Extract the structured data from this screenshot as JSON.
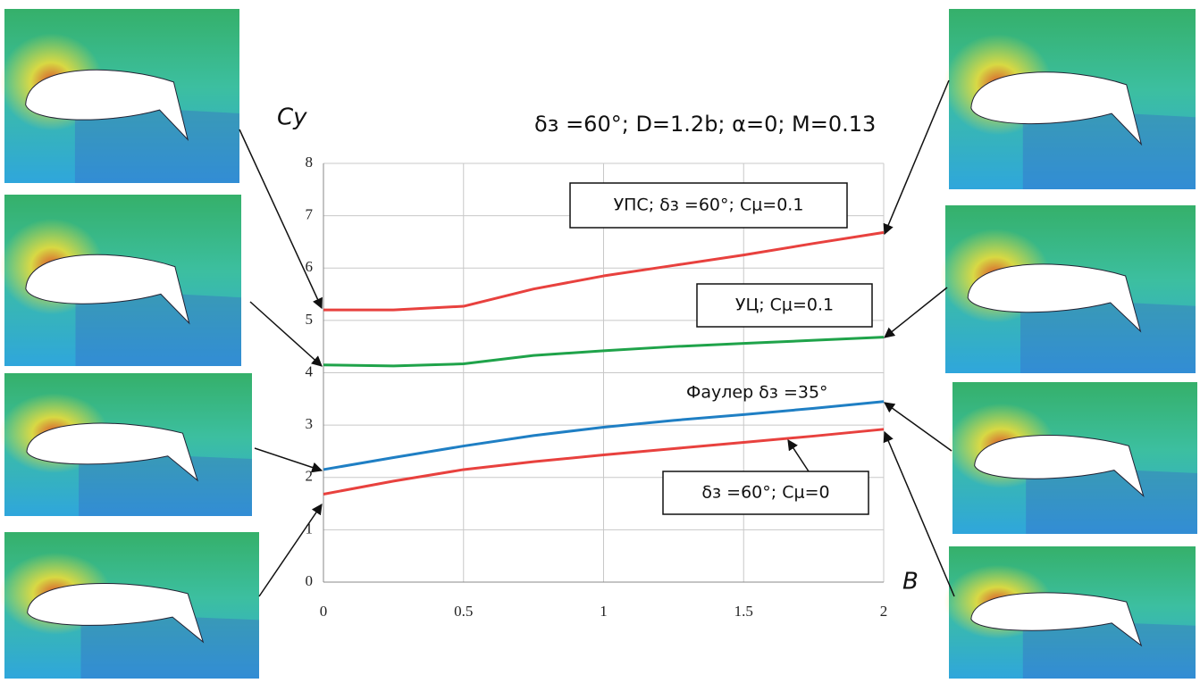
{
  "chart_data": {
    "type": "line",
    "title": "δз =60°; D=1.2b; α=0; M=0.13",
    "y_label": "Cy",
    "x_label": "B",
    "xlim": [
      0,
      2
    ],
    "xticks": [
      0,
      0.5,
      1,
      1.5,
      2
    ],
    "ylim": [
      0,
      8
    ],
    "yticks": [
      0,
      1,
      2,
      3,
      4,
      5,
      6,
      7,
      8
    ],
    "grid": true,
    "x": [
      0,
      0.25,
      0.5,
      0.75,
      1,
      1.25,
      1.5,
      1.75,
      2
    ],
    "series": [
      {
        "name": "УПС; δз =60°; Cμ=0.1",
        "color": "#e8413e",
        "values": [
          5.2,
          5.2,
          5.27,
          5.6,
          5.85,
          6.05,
          6.25,
          6.47,
          6.68
        ]
      },
      {
        "name": "УЦ; Cμ=0.1",
        "color": "#1fa34a",
        "values": [
          4.15,
          4.13,
          4.17,
          4.33,
          4.42,
          4.5,
          4.56,
          4.62,
          4.68
        ]
      },
      {
        "name": "Фаулер δз =35°",
        "color": "#1f7fc4",
        "values": [
          2.15,
          2.38,
          2.6,
          2.8,
          2.96,
          3.09,
          3.2,
          3.32,
          3.45
        ]
      },
      {
        "name": "δз =60°; Cμ=0",
        "color": "#e8413e",
        "values": [
          1.68,
          1.93,
          2.15,
          2.3,
          2.43,
          2.55,
          2.67,
          2.79,
          2.92
        ]
      }
    ]
  }
}
